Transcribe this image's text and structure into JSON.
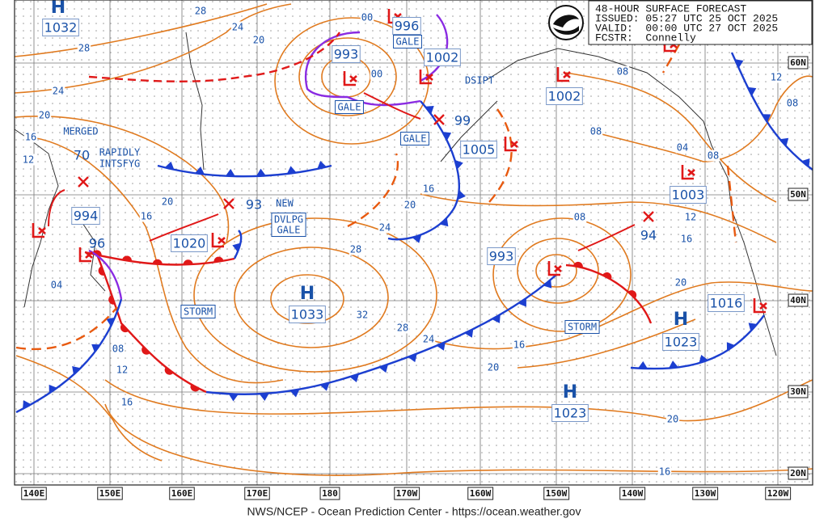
{
  "header": {
    "title": "48-HOUR SURFACE FORECAST",
    "issued": "ISSUED: 05:27 UTC 25 OCT 2025",
    "valid": "VALID:  00:00 UTC 27 OCT 2025",
    "forecaster": "FCSTR:  Connelly"
  },
  "footer": "NWS/NCEP - Ocean Prediction Center - https://ocean.weather.gov",
  "longitude_labels": [
    "140E",
    "150E",
    "160E",
    "170E",
    "180",
    "170W",
    "160W",
    "150W",
    "140W",
    "130W",
    "120W"
  ],
  "latitude_labels": [
    "60N",
    "50N",
    "40N",
    "30N",
    "20N"
  ],
  "highs": [
    {
      "symbol": "H",
      "pressure": "1032"
    },
    {
      "symbol": "H",
      "pressure": "1033"
    },
    {
      "symbol": "H",
      "pressure": "1023"
    },
    {
      "symbol": "H",
      "pressure": "1023"
    }
  ],
  "pressure_labels": [
    "993",
    "996",
    "1002",
    "99",
    "1005",
    "1002",
    "1003",
    "70",
    "994",
    "96",
    "1020",
    "93",
    "993",
    "94",
    "1016"
  ],
  "isobar_labels": [
    "28",
    "24",
    "20",
    "28",
    "24",
    "20",
    "16",
    "12",
    "20",
    "16",
    "04",
    "00",
    "00",
    "16",
    "20",
    "24",
    "28",
    "32",
    "28",
    "24",
    "16",
    "20",
    "08",
    "16",
    "12",
    "20",
    "08",
    "08",
    "04",
    "08",
    "12",
    "08",
    "08",
    "12",
    "16",
    "20",
    "16"
  ],
  "warnings": [
    [
      "GALE"
    ],
    [
      "GALE"
    ],
    [
      "GALE"
    ],
    [
      "DVLPG",
      "GALE"
    ],
    [
      "STORM"
    ],
    [
      "STORM"
    ]
  ],
  "notes": [
    "MERGED",
    "RAPIDLY",
    "INTSFYG",
    "NEW",
    "DSIPT"
  ]
}
